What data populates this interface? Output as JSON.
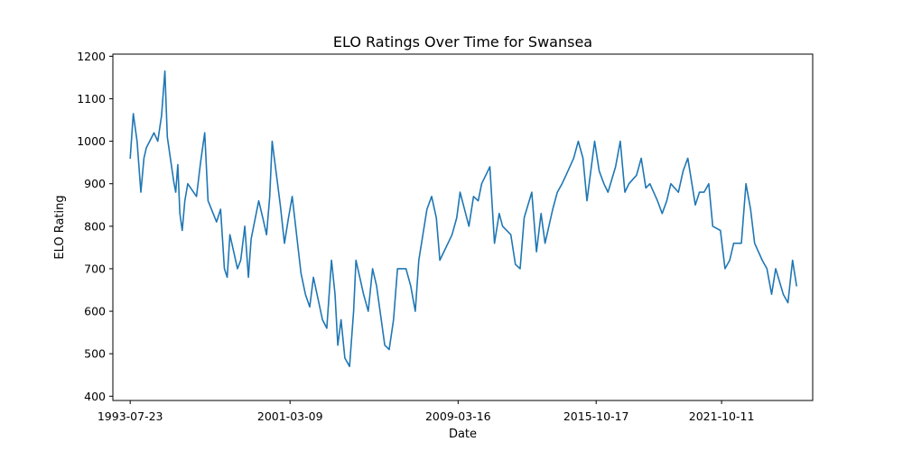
{
  "chart_data": {
    "type": "line",
    "title": "ELO Ratings Over Time for Swansea",
    "xlabel": "Date",
    "ylabel": "ELO Rating",
    "xlim": [
      "1992-09-24",
      "2026-02-15"
    ],
    "ylim": [
      390,
      1205
    ],
    "x_ticks": [
      "1993-07-23",
      "2001-03-09",
      "2009-03-16",
      "2015-10-17",
      "2021-10-11"
    ],
    "y_ticks": [
      400,
      500,
      600,
      700,
      800,
      900,
      1000,
      1100,
      1200
    ],
    "grid": false,
    "legend": "none",
    "series": [
      {
        "color": "#1f77b4",
        "x": [
          "1993-07-23",
          "1993-09-15",
          "1993-11-20",
          "1994-01-25",
          "1994-03-20",
          "1994-05-01",
          "1994-09-10",
          "1994-11-15",
          "1995-01-20",
          "1995-03-20",
          "1995-05-01",
          "1995-08-20",
          "1995-09-25",
          "1995-10-30",
          "1995-12-05",
          "1996-01-15",
          "1996-03-01",
          "1996-04-20",
          "1996-09-20",
          "1996-11-30",
          "1997-02-10",
          "1997-04-10",
          "1997-09-05",
          "1997-11-15",
          "1998-01-20",
          "1998-03-10",
          "1998-04-25",
          "1998-09-05",
          "1998-11-01",
          "1999-01-10",
          "1999-03-15",
          "1999-05-01",
          "1999-09-10",
          "1999-11-20",
          "2000-01-25",
          "2000-03-20",
          "2000-05-01",
          "2000-09-20",
          "2000-12-01",
          "2001-02-10",
          "2001-04-15",
          "2001-09-15",
          "2001-12-01",
          "2002-02-15",
          "2002-04-20",
          "2002-09-25",
          "2002-12-10",
          "2003-03-01",
          "2003-05-01",
          "2003-06-20",
          "2003-08-15",
          "2003-10-20",
          "2004-01-10",
          "2004-03-20",
          "2004-05-01",
          "2004-09-10",
          "2004-12-01",
          "2005-02-15",
          "2005-04-25",
          "2005-09-15",
          "2005-12-01",
          "2006-02-15",
          "2006-04-25",
          "2006-09-20",
          "2006-12-10",
          "2007-03-01",
          "2007-05-01",
          "2007-09-20",
          "2007-12-10",
          "2008-03-01",
          "2008-05-01",
          "2008-09-20",
          "2008-12-01",
          "2009-02-20",
          "2009-04-20",
          "2009-09-20",
          "2009-12-10",
          "2010-03-01",
          "2010-05-01",
          "2010-09-20",
          "2010-12-10",
          "2011-03-01",
          "2011-05-01",
          "2011-09-20",
          "2011-12-10",
          "2012-03-01",
          "2012-05-10",
          "2012-09-20",
          "2012-12-10",
          "2013-03-01",
          "2013-05-10",
          "2013-09-20",
          "2013-12-10",
          "2014-03-01",
          "2014-05-10",
          "2014-09-20",
          "2014-12-10",
          "2015-03-01",
          "2015-05-10",
          "2015-09-20",
          "2015-12-10",
          "2016-03-01",
          "2016-05-10",
          "2016-09-20",
          "2016-12-10",
          "2017-03-01",
          "2017-05-10",
          "2017-09-20",
          "2017-12-10",
          "2018-03-01",
          "2018-05-10",
          "2018-09-20",
          "2018-12-10",
          "2019-03-01",
          "2019-05-10",
          "2019-09-20",
          "2019-12-10",
          "2020-03-01",
          "2020-07-10",
          "2020-09-20",
          "2020-12-10",
          "2021-03-01",
          "2021-05-10",
          "2021-09-20",
          "2021-12-10",
          "2022-03-01",
          "2022-05-10",
          "2022-09-20",
          "2022-12-10",
          "2023-03-01",
          "2023-05-10",
          "2023-09-20",
          "2023-12-10",
          "2024-03-01",
          "2024-05-10",
          "2024-09-20",
          "2024-12-10",
          "2025-03-01",
          "2025-05-10"
        ],
        "y": [
          960,
          1065,
          1000,
          880,
          960,
          985,
          1020,
          1000,
          1060,
          1165,
          1010,
          905,
          880,
          945,
          830,
          790,
          860,
          900,
          870,
          950,
          1020,
          860,
          810,
          840,
          700,
          680,
          780,
          700,
          720,
          800,
          680,
          770,
          860,
          820,
          780,
          870,
          1000,
          850,
          760,
          820,
          870,
          690,
          640,
          610,
          680,
          580,
          560,
          720,
          640,
          520,
          580,
          490,
          470,
          600,
          720,
          640,
          600,
          700,
          660,
          520,
          510,
          580,
          700,
          700,
          660,
          600,
          720,
          840,
          870,
          820,
          720,
          760,
          780,
          820,
          880,
          800,
          870,
          860,
          900,
          940,
          760,
          830,
          800,
          780,
          710,
          700,
          820,
          880,
          740,
          830,
          760,
          840,
          880,
          900,
          920,
          960,
          1000,
          960,
          860,
          1000,
          930,
          900,
          880,
          940,
          1000,
          880,
          900,
          920,
          960,
          890,
          900,
          860,
          830,
          860,
          900,
          880,
          930,
          960,
          850,
          880,
          880,
          900,
          800,
          790,
          700,
          720,
          760,
          760,
          900,
          840,
          760,
          720,
          700,
          640,
          700,
          640,
          620,
          720,
          660
        ]
      }
    ]
  }
}
